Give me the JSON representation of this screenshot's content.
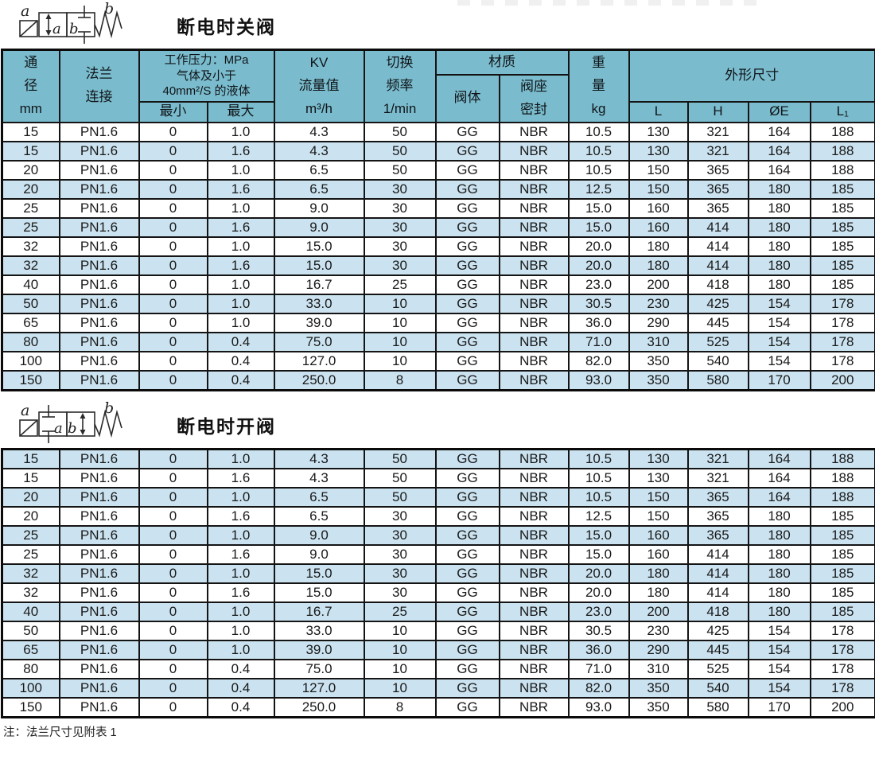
{
  "sections": [
    {
      "title": "断电时关阀",
      "symbol": {
        "coil_label": "a",
        "spring_label": "b",
        "pos_a": "a",
        "pos_b": "b"
      }
    },
    {
      "title": "断电时开阀",
      "symbol": {
        "coil_label": "a",
        "spring_label": "b",
        "pos_a": "a",
        "pos_b": "b"
      }
    }
  ],
  "table": {
    "header": {
      "diameter": "通\n径\nmm",
      "flange": "法兰\n连接",
      "pressure": "工作压力：MPa\n气体及小于\n40mm²/S 的液体",
      "min": "最小",
      "max": "最大",
      "kv": "KV\n流量值\nm³/h",
      "freq": "切换\n频率\n1/min",
      "material": "材质",
      "body": "阀体",
      "seat": "阀座\n密封",
      "weight": "重\n量\nkg",
      "dims": "外形尺寸",
      "L": "L",
      "H": "H",
      "OE": "ØE",
      "L1": "L₁"
    },
    "rows": [
      [
        "15",
        "PN1.6",
        "0",
        "1.0",
        "4.3",
        "50",
        "GG",
        "NBR",
        "10.5",
        "130",
        "321",
        "164",
        "188"
      ],
      [
        "15",
        "PN1.6",
        "0",
        "1.6",
        "4.3",
        "50",
        "GG",
        "NBR",
        "10.5",
        "130",
        "321",
        "164",
        "188"
      ],
      [
        "20",
        "PN1.6",
        "0",
        "1.0",
        "6.5",
        "50",
        "GG",
        "NBR",
        "10.5",
        "150",
        "365",
        "164",
        "188"
      ],
      [
        "20",
        "PN1.6",
        "0",
        "1.6",
        "6.5",
        "30",
        "GG",
        "NBR",
        "12.5",
        "150",
        "365",
        "180",
        "185"
      ],
      [
        "25",
        "PN1.6",
        "0",
        "1.0",
        "9.0",
        "30",
        "GG",
        "NBR",
        "15.0",
        "160",
        "365",
        "180",
        "185"
      ],
      [
        "25",
        "PN1.6",
        "0",
        "1.6",
        "9.0",
        "30",
        "GG",
        "NBR",
        "15.0",
        "160",
        "414",
        "180",
        "185"
      ],
      [
        "32",
        "PN1.6",
        "0",
        "1.0",
        "15.0",
        "30",
        "GG",
        "NBR",
        "20.0",
        "180",
        "414",
        "180",
        "185"
      ],
      [
        "32",
        "PN1.6",
        "0",
        "1.6",
        "15.0",
        "30",
        "GG",
        "NBR",
        "20.0",
        "180",
        "414",
        "180",
        "185"
      ],
      [
        "40",
        "PN1.6",
        "0",
        "1.0",
        "16.7",
        "25",
        "GG",
        "NBR",
        "23.0",
        "200",
        "418",
        "180",
        "185"
      ],
      [
        "50",
        "PN1.6",
        "0",
        "1.0",
        "33.0",
        "10",
        "GG",
        "NBR",
        "30.5",
        "230",
        "425",
        "154",
        "178"
      ],
      [
        "65",
        "PN1.6",
        "0",
        "1.0",
        "39.0",
        "10",
        "GG",
        "NBR",
        "36.0",
        "290",
        "445",
        "154",
        "178"
      ],
      [
        "80",
        "PN1.6",
        "0",
        "0.4",
        "75.0",
        "10",
        "GG",
        "NBR",
        "71.0",
        "310",
        "525",
        "154",
        "178"
      ],
      [
        "100",
        "PN1.6",
        "0",
        "0.4",
        "127.0",
        "10",
        "GG",
        "NBR",
        "82.0",
        "350",
        "540",
        "154",
        "178"
      ],
      [
        "150",
        "PN1.6",
        "0",
        "0.4",
        "250.0",
        "8",
        "GG",
        "NBR",
        "93.0",
        "350",
        "580",
        "170",
        "200"
      ]
    ]
  },
  "note": "注：法兰尺寸见附表 1",
  "colors": {
    "header_bg": "#7abccd",
    "row_alt": "#cbe3f0",
    "border": "#141414"
  }
}
